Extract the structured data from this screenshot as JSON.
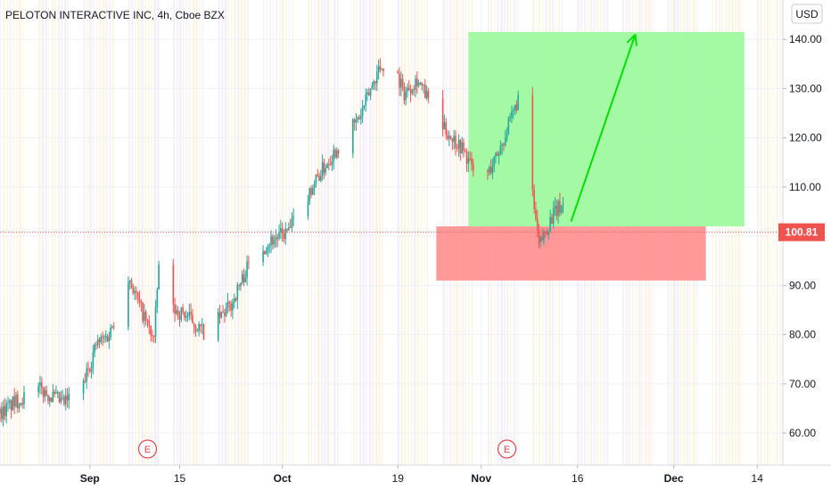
{
  "chart_data": {
    "type": "candlestick",
    "title": "PELOTON INTERACTIVE INC, 4h, Cboe BZX",
    "currency": "USD",
    "last_price": 100.81,
    "ylim": [
      53.5,
      148
    ],
    "y_ticks": [
      "140.00",
      "130.00",
      "120.00",
      "110.00",
      "100.00",
      "90.00",
      "80.00",
      "70.00",
      "60.00"
    ],
    "y_tick_values": [
      140,
      130,
      120,
      110,
      100,
      90,
      80,
      70,
      60
    ],
    "x_ticks": [
      "Sep",
      "15",
      "Oct",
      "19",
      "Nov",
      "16",
      "Dec",
      "14"
    ],
    "x_tick_dates": [
      "2020-09-01",
      "2020-09-15",
      "2020-10-01",
      "2020-10-19",
      "2020-11-01",
      "2020-11-16",
      "2020-12-01",
      "2020-12-14"
    ],
    "x_tick_bold": [
      true,
      false,
      true,
      false,
      true,
      false,
      true,
      false
    ],
    "xlim": [
      "2020-08-18",
      "2020-12-18"
    ],
    "earnings_markers": [
      {
        "label": "E",
        "date": "2020-09-10"
      },
      {
        "label": "E",
        "date": "2020-11-05"
      }
    ],
    "closes_path": [
      {
        "date": "2020-08-18",
        "close": 64
      },
      {
        "date": "2020-08-20",
        "close": 66
      },
      {
        "date": "2020-08-24",
        "close": 69
      },
      {
        "date": "2020-08-28",
        "close": 66
      },
      {
        "date": "2020-08-31",
        "close": 70
      },
      {
        "date": "2020-09-02",
        "close": 78
      },
      {
        "date": "2020-09-04",
        "close": 80
      },
      {
        "date": "2020-09-07",
        "close": 92
      },
      {
        "date": "2020-09-09",
        "close": 85
      },
      {
        "date": "2020-09-11",
        "close": 79
      },
      {
        "date": "2020-09-12",
        "close": 99
      },
      {
        "date": "2020-09-14",
        "close": 85
      },
      {
        "date": "2020-09-16",
        "close": 84
      },
      {
        "date": "2020-09-19",
        "close": 80
      },
      {
        "date": "2020-09-23",
        "close": 86
      },
      {
        "date": "2020-09-26",
        "close": 95
      },
      {
        "date": "2020-09-29",
        "close": 99
      },
      {
        "date": "2020-10-02",
        "close": 101
      },
      {
        "date": "2020-10-06",
        "close": 111
      },
      {
        "date": "2020-10-09",
        "close": 117
      },
      {
        "date": "2020-10-13",
        "close": 124
      },
      {
        "date": "2020-10-16",
        "close": 134
      },
      {
        "date": "2020-10-18",
        "close": 136
      },
      {
        "date": "2020-10-20",
        "close": 129
      },
      {
        "date": "2020-10-22",
        "close": 132
      },
      {
        "date": "2020-10-24",
        "close": 127
      },
      {
        "date": "2020-10-26",
        "close": 122
      },
      {
        "date": "2020-10-29",
        "close": 118
      },
      {
        "date": "2020-11-01",
        "close": 110
      },
      {
        "date": "2020-11-04",
        "close": 118
      },
      {
        "date": "2020-11-06",
        "close": 125
      },
      {
        "date": "2020-11-07",
        "close": 129
      },
      {
        "date": "2020-11-08",
        "close": 114
      },
      {
        "date": "2020-11-09",
        "close": 108
      },
      {
        "date": "2020-11-10",
        "close": 98
      },
      {
        "date": "2020-11-12",
        "close": 104
      },
      {
        "date": "2020-11-14",
        "close": 107
      },
      {
        "date": "2020-11-15",
        "close": 101
      }
    ],
    "annotations": {
      "target_zone": {
        "color": "#9cfa9c",
        "date_from": "2020-10-30",
        "date_to": "2020-12-12",
        "price_from": 102,
        "price_to": 141.5
      },
      "stop_zone": {
        "color": "#ff8f8f",
        "date_from": "2020-10-25",
        "date_to": "2020-12-06",
        "price_from": 91,
        "price_to": 102
      },
      "arrow": {
        "color": "#00e000",
        "from_date": "2020-11-15",
        "from_price": 103,
        "to_date": "2020-11-25",
        "to_price": 141
      }
    },
    "colors": {
      "up": "#26a69a",
      "down": "#ef5350",
      "price_label": "#ef5350",
      "earnings": "#e0474c"
    }
  }
}
